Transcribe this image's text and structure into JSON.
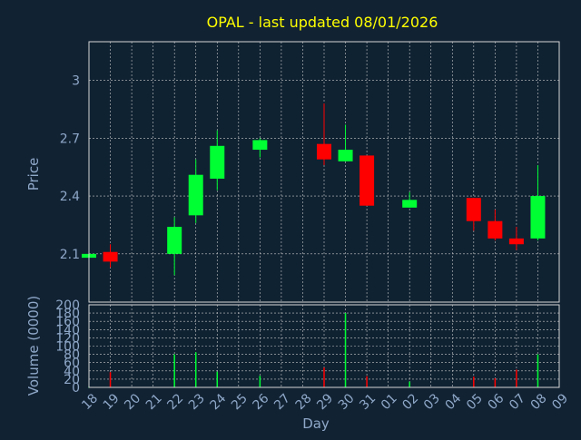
{
  "title": "OPAL - last updated 08/01/2026",
  "colors": {
    "background": "#112233",
    "plot_background": "#0f2232",
    "frame": "#d6d6d6",
    "grid": "#c8c8c8",
    "title": "#ffff00",
    "label": "#8fa8c8",
    "up": "#00ff33",
    "down": "#ff0000"
  },
  "chart_data": [
    {
      "type": "candlestick",
      "ylabel": "Price",
      "ylim": [
        1.85,
        3.2
      ],
      "yticks": [
        2.1,
        2.4,
        2.7,
        3
      ],
      "ytick_labels": [
        "2.1",
        "2.4",
        "2.7",
        "3"
      ],
      "grid": true,
      "categories": [
        "18",
        "19",
        "20",
        "21",
        "22",
        "23",
        "24",
        "25",
        "26",
        "27",
        "28",
        "29",
        "30",
        "31",
        "01",
        "02",
        "03",
        "04",
        "05",
        "06",
        "07",
        "08",
        "09"
      ],
      "candles": [
        {
          "x": "18",
          "open": 2.08,
          "close": 2.1,
          "high": 2.1,
          "low": 2.08
        },
        {
          "x": "19",
          "open": 2.11,
          "close": 2.06,
          "high": 2.15,
          "low": 2.03
        },
        {
          "x": "22",
          "open": 2.1,
          "close": 2.24,
          "high": 2.29,
          "low": 1.99
        },
        {
          "x": "23",
          "open": 2.3,
          "close": 2.51,
          "high": 2.59,
          "low": 2.26
        },
        {
          "x": "24",
          "open": 2.49,
          "close": 2.66,
          "high": 2.74,
          "low": 2.43
        },
        {
          "x": "26",
          "open": 2.64,
          "close": 2.69,
          "high": 2.7,
          "low": 2.6
        },
        {
          "x": "29",
          "open": 2.67,
          "close": 2.59,
          "high": 2.88,
          "low": 2.56
        },
        {
          "x": "30",
          "open": 2.58,
          "close": 2.64,
          "high": 2.77,
          "low": 2.58
        },
        {
          "x": "31",
          "open": 2.61,
          "close": 2.35,
          "high": 2.61,
          "low": 2.35
        },
        {
          "x": "02",
          "open": 2.34,
          "close": 2.38,
          "high": 2.42,
          "low": 2.34
        },
        {
          "x": "05",
          "open": 2.39,
          "close": 2.27,
          "high": 2.39,
          "low": 2.22
        },
        {
          "x": "06",
          "open": 2.27,
          "close": 2.18,
          "high": 2.33,
          "low": 2.17
        },
        {
          "x": "07",
          "open": 2.18,
          "close": 2.15,
          "high": 2.24,
          "low": 2.12
        },
        {
          "x": "08",
          "open": 2.18,
          "close": 2.4,
          "high": 2.56,
          "low": 2.17
        }
      ]
    },
    {
      "type": "bar",
      "ylabel": "Volume (0000)",
      "xlabel": "Day",
      "ylim": [
        0,
        200
      ],
      "yticks": [
        0,
        20,
        40,
        60,
        80,
        100,
        120,
        140,
        160,
        180,
        200
      ],
      "ytick_labels": [
        "0",
        "20",
        "40",
        "60",
        "80",
        "100",
        "120",
        "140",
        "160",
        "180",
        "200"
      ],
      "grid": true,
      "categories": [
        "18",
        "19",
        "20",
        "21",
        "22",
        "23",
        "24",
        "25",
        "26",
        "27",
        "28",
        "29",
        "30",
        "31",
        "01",
        "02",
        "03",
        "04",
        "05",
        "06",
        "07",
        "08",
        "09"
      ],
      "bars": [
        {
          "x": "18",
          "value": 1,
          "direction": "up"
        },
        {
          "x": "19",
          "value": 37,
          "direction": "down"
        },
        {
          "x": "22",
          "value": 80,
          "direction": "up"
        },
        {
          "x": "23",
          "value": 85,
          "direction": "up"
        },
        {
          "x": "24",
          "value": 38,
          "direction": "up"
        },
        {
          "x": "26",
          "value": 28,
          "direction": "up"
        },
        {
          "x": "29",
          "value": 48,
          "direction": "down"
        },
        {
          "x": "30",
          "value": 180,
          "direction": "up"
        },
        {
          "x": "31",
          "value": 27,
          "direction": "down"
        },
        {
          "x": "02",
          "value": 14,
          "direction": "up"
        },
        {
          "x": "05",
          "value": 26,
          "direction": "down"
        },
        {
          "x": "06",
          "value": 22,
          "direction": "down"
        },
        {
          "x": "07",
          "value": 43,
          "direction": "down"
        },
        {
          "x": "08",
          "value": 80,
          "direction": "up"
        }
      ]
    }
  ]
}
